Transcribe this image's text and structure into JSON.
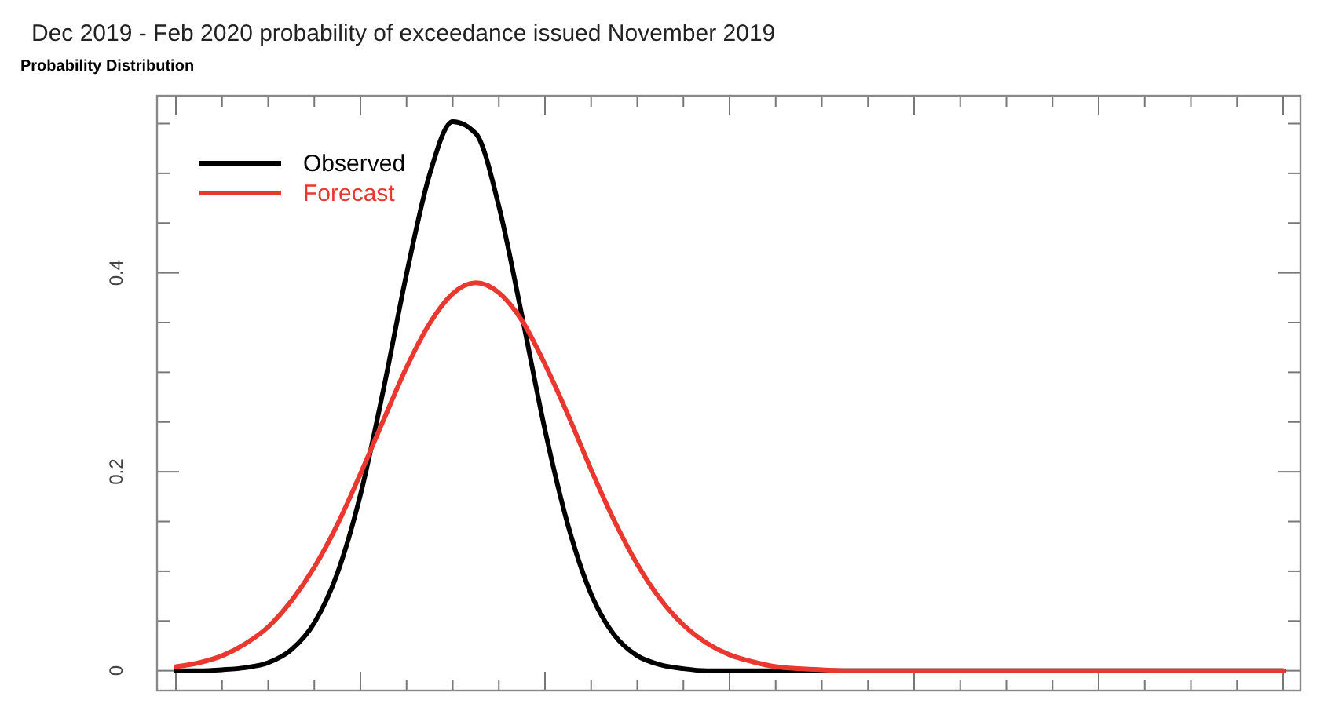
{
  "chart_data": {
    "type": "line",
    "title": "Dec 2019 - Feb 2020 probability of exceedance issued November 2019",
    "subtitle": "Probability Distribution",
    "categories": [
      null,
      null,
      null,
      null,
      null,
      null,
      null,
      null,
      null,
      null,
      null,
      null,
      null,
      null,
      null,
      null,
      null,
      null,
      null,
      null,
      null,
      null,
      null,
      null,
      null,
      null,
      null,
      null,
      null,
      null,
      null,
      null,
      null,
      null,
      null,
      null,
      null,
      null,
      null,
      null,
      null,
      null,
      null,
      null,
      null,
      null,
      null,
      null,
      null
    ],
    "series": [
      {
        "name": "Observed",
        "color": "#000000",
        "values": [
          0,
          0,
          0.001,
          0.003,
          0.008,
          0.021,
          0.048,
          0.098,
          0.177,
          0.283,
          0.399,
          0.499,
          0.552,
          0.54,
          0.467,
          0.357,
          0.242,
          0.146,
          0.077,
          0.036,
          0.015,
          0.006,
          0.002,
          0,
          0,
          0,
          0,
          0,
          0,
          0,
          0,
          0,
          0,
          0,
          0,
          0,
          0,
          0,
          0,
          0,
          0,
          0,
          0,
          0,
          0,
          0,
          0,
          0,
          0
        ]
      },
      {
        "name": "Forecast",
        "color": "#e8382f",
        "values": [
          0.004,
          0.008,
          0.015,
          0.027,
          0.044,
          0.07,
          0.104,
          0.147,
          0.198,
          0.252,
          0.305,
          0.349,
          0.379,
          0.39,
          0.38,
          0.352,
          0.308,
          0.257,
          0.202,
          0.151,
          0.107,
          0.072,
          0.046,
          0.028,
          0.016,
          0.009,
          0.004,
          0.002,
          0.001,
          0,
          0,
          0,
          0,
          0,
          0,
          0,
          0,
          0,
          0,
          0,
          0,
          0,
          0,
          0,
          0,
          0,
          0,
          0,
          0
        ]
      }
    ],
    "ylim": [
      -0.02,
      0.578
    ],
    "yticks": [
      0,
      {
        "value": 0.05,
        "label": null
      },
      {
        "value": 0.1,
        "label": null
      },
      {
        "value": 0.15,
        "label": null
      },
      0.2,
      {
        "value": 0.25,
        "label": null
      },
      {
        "value": 0.3,
        "label": null
      },
      {
        "value": 0.35,
        "label": null
      },
      0.4,
      {
        "value": 0.45,
        "label": null
      },
      {
        "value": 0.5,
        "label": null
      },
      {
        "value": 0.55,
        "label": null
      }
    ],
    "tick_labels": "y",
    "grid": false,
    "legend": "top left",
    "marker": "none",
    "line_style": "solid"
  }
}
